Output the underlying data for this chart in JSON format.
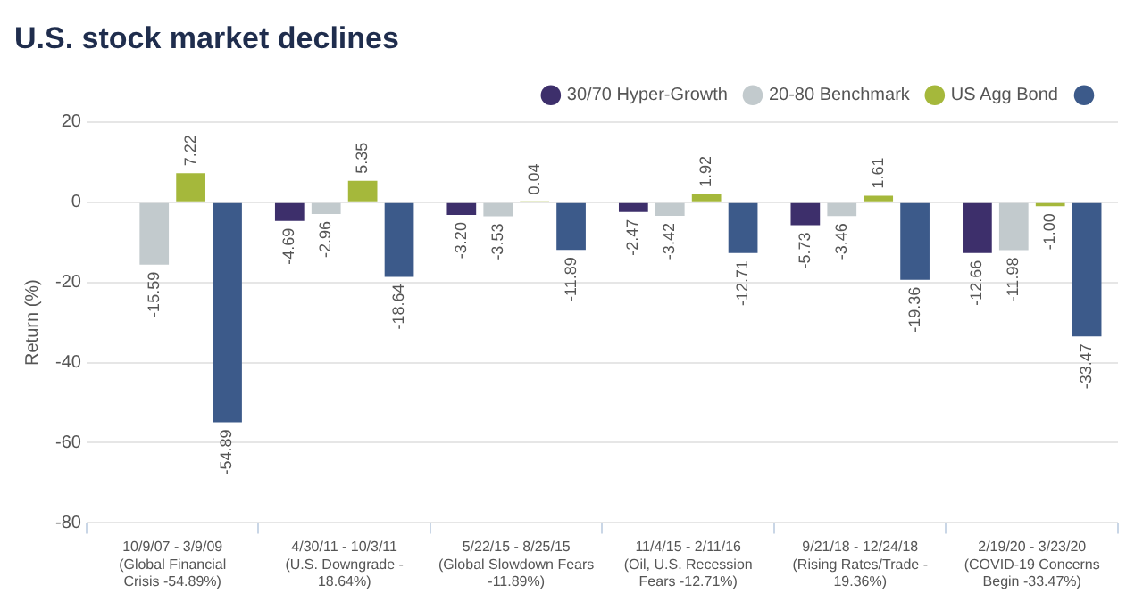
{
  "chart_data": {
    "type": "bar",
    "title": "U.S. stock market declines",
    "ylabel": "Return (%)",
    "categories": [
      "10/9/07 - 3/9/09 (Global Financial Crisis -54.89%)",
      "4/30/11 - 10/3/11 (U.S. Downgrade - 18.64%)",
      "5/22/15 - 8/25/15 (Global Slowdown Fears -11.89%)",
      "11/4/15 - 2/11/16 (Oil, U.S. Recession Fears -12.71%)",
      "9/21/18 - 12/24/18 (Rising Rates/Trade - 19.36%)",
      "2/19/20 - 3/23/20 (COVID-19 Concerns Begin -33.47%)"
    ],
    "series": [
      {
        "name": "30/70 Hyper-Growth",
        "color": "#3d2f6b",
        "values": [
          null,
          -4.69,
          -3.2,
          -2.47,
          -5.73,
          -12.66
        ],
        "value_labels": [
          null,
          "-4.69",
          "-3.20",
          "-2.47",
          "-5.73",
          "-12.66"
        ]
      },
      {
        "name": "20-80 Benchmark",
        "color": "#c2cacd",
        "values": [
          -15.59,
          -2.96,
          -3.53,
          -3.42,
          -3.46,
          -11.98
        ],
        "value_labels": [
          "-15.59",
          "-2.96",
          "-3.53",
          "-3.42",
          "-3.46",
          "-11.98"
        ]
      },
      {
        "name": "US Agg Bond",
        "color": "#a5b83b",
        "values": [
          7.22,
          5.35,
          0.04,
          1.92,
          1.61,
          -1.0
        ],
        "value_labels": [
          "7.22",
          "5.35",
          "0.04",
          "1.92",
          "1.61",
          "-1.00"
        ]
      },
      {
        "color": "#3c5a8a",
        "values": [
          -54.89,
          -18.64,
          -11.89,
          -12.71,
          -19.36,
          -33.47
        ],
        "value_labels": [
          "-54.89",
          "-18.64",
          "-11.89",
          "-12.71",
          "-19.36",
          "-33.47"
        ]
      }
    ],
    "ylim": [
      -80,
      20
    ],
    "yticks": [
      -80,
      -60,
      -40,
      -20,
      0,
      20
    ],
    "grid": "y",
    "legend": "top right"
  }
}
